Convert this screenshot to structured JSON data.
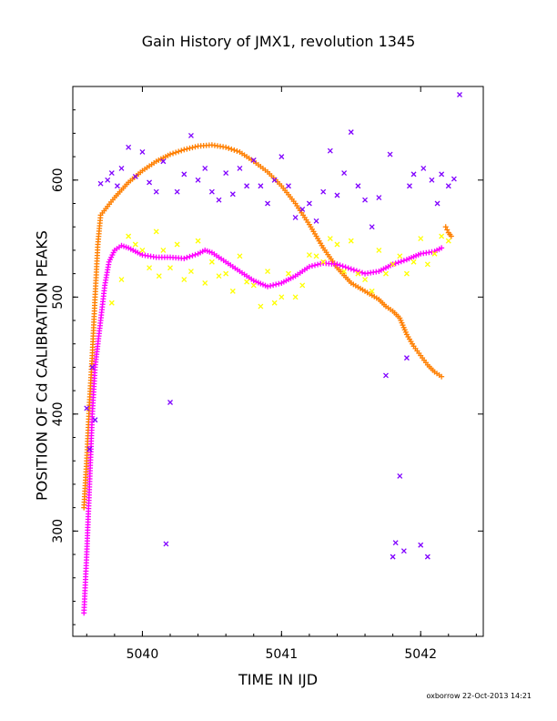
{
  "chart_data": {
    "type": "scatter",
    "title": "Gain History of JMX1, revolution 1345",
    "xlabel": "TIME IN IJD",
    "ylabel": "POSITION OF Cd CALIBRATION PEAKS",
    "footer": "oxborrow 22-Oct-2013 14:21",
    "xlim": [
      5039.5,
      5042.45
    ],
    "ylim": [
      210,
      680
    ],
    "xticks": [
      5040,
      5041,
      5042
    ],
    "yticks": [
      300,
      400,
      500,
      600
    ],
    "grid": false,
    "legend": "none",
    "series": [
      {
        "color": "#ff7f00",
        "marker": "plus-dense",
        "points": [
          [
            5039.58,
            320
          ],
          [
            5039.6,
            360
          ],
          [
            5039.62,
            410
          ],
          [
            5039.64,
            450
          ],
          [
            5039.66,
            500
          ],
          [
            5039.68,
            545
          ],
          [
            5039.7,
            570
          ],
          [
            5039.8,
            585
          ],
          [
            5039.9,
            598
          ],
          [
            5040.0,
            608
          ],
          [
            5040.1,
            616
          ],
          [
            5040.2,
            622
          ],
          [
            5040.3,
            626
          ],
          [
            5040.4,
            629
          ],
          [
            5040.5,
            630
          ],
          [
            5040.6,
            628
          ],
          [
            5040.7,
            624
          ],
          [
            5040.8,
            616
          ],
          [
            5040.9,
            607
          ],
          [
            5041.0,
            595
          ],
          [
            5041.1,
            580
          ],
          [
            5041.2,
            562
          ],
          [
            5041.3,
            542
          ],
          [
            5041.4,
            525
          ],
          [
            5041.5,
            512
          ],
          [
            5041.6,
            505
          ],
          [
            5041.7,
            498
          ],
          [
            5041.75,
            492
          ],
          [
            5041.8,
            488
          ],
          [
            5041.85,
            482
          ],
          [
            5041.9,
            468
          ],
          [
            5041.95,
            458
          ],
          [
            5042.0,
            450
          ],
          [
            5042.05,
            442
          ],
          [
            5042.1,
            436
          ],
          [
            5042.15,
            432
          ],
          [
            5042.18,
            560
          ],
          [
            5042.2,
            555
          ],
          [
            5042.22,
            552
          ]
        ]
      },
      {
        "color": "#ff00ff",
        "marker": "plus-dense",
        "points": [
          [
            5039.58,
            230
          ],
          [
            5039.6,
            280
          ],
          [
            5039.62,
            340
          ],
          [
            5039.64,
            400
          ],
          [
            5039.66,
            440
          ],
          [
            5039.68,
            460
          ],
          [
            5039.7,
            480
          ],
          [
            5039.73,
            510
          ],
          [
            5039.76,
            530
          ],
          [
            5039.8,
            540
          ],
          [
            5039.85,
            544
          ],
          [
            5039.9,
            542
          ],
          [
            5040.0,
            536
          ],
          [
            5040.1,
            534
          ],
          [
            5040.2,
            534
          ],
          [
            5040.3,
            533
          ],
          [
            5040.4,
            537
          ],
          [
            5040.45,
            540
          ],
          [
            5040.5,
            538
          ],
          [
            5040.6,
            530
          ],
          [
            5040.7,
            522
          ],
          [
            5040.8,
            514
          ],
          [
            5040.9,
            509
          ],
          [
            5041.0,
            512
          ],
          [
            5041.1,
            518
          ],
          [
            5041.2,
            526
          ],
          [
            5041.3,
            529
          ],
          [
            5041.4,
            528
          ],
          [
            5041.5,
            524
          ],
          [
            5041.6,
            520
          ],
          [
            5041.7,
            522
          ],
          [
            5041.8,
            528
          ],
          [
            5041.9,
            532
          ],
          [
            5042.0,
            537
          ],
          [
            5042.1,
            539
          ],
          [
            5042.15,
            542
          ]
        ]
      },
      {
        "color": "#ffff00",
        "marker": "x",
        "points": [
          [
            5039.78,
            495
          ],
          [
            5039.85,
            515
          ],
          [
            5039.9,
            552
          ],
          [
            5039.95,
            545
          ],
          [
            5040.0,
            540
          ],
          [
            5040.05,
            525
          ],
          [
            5040.1,
            556
          ],
          [
            5040.12,
            518
          ],
          [
            5040.15,
            540
          ],
          [
            5040.2,
            525
          ],
          [
            5040.25,
            545
          ],
          [
            5040.3,
            515
          ],
          [
            5040.35,
            522
          ],
          [
            5040.4,
            548
          ],
          [
            5040.45,
            512
          ],
          [
            5040.5,
            530
          ],
          [
            5040.55,
            518
          ],
          [
            5040.6,
            520
          ],
          [
            5040.65,
            505
          ],
          [
            5040.7,
            535
          ],
          [
            5040.75,
            513
          ],
          [
            5040.8,
            510
          ],
          [
            5040.85,
            492
          ],
          [
            5040.9,
            522
          ],
          [
            5040.95,
            495
          ],
          [
            5041.0,
            500
          ],
          [
            5041.05,
            520
          ],
          [
            5041.1,
            500
          ],
          [
            5041.15,
            510
          ],
          [
            5041.2,
            536
          ],
          [
            5041.25,
            535
          ],
          [
            5041.3,
            530
          ],
          [
            5041.35,
            550
          ],
          [
            5041.4,
            545
          ],
          [
            5041.45,
            522
          ],
          [
            5041.5,
            548
          ],
          [
            5041.55,
            520
          ],
          [
            5041.6,
            515
          ],
          [
            5041.65,
            505
          ],
          [
            5041.7,
            540
          ],
          [
            5041.75,
            520
          ],
          [
            5041.8,
            528
          ],
          [
            5041.85,
            535
          ],
          [
            5041.9,
            520
          ],
          [
            5041.95,
            530
          ],
          [
            5042.0,
            550
          ],
          [
            5042.05,
            528
          ],
          [
            5042.1,
            537
          ],
          [
            5042.15,
            552
          ],
          [
            5042.2,
            548
          ]
        ]
      },
      {
        "color": "#8000ff",
        "marker": "x",
        "points": [
          [
            5039.6,
            405
          ],
          [
            5039.62,
            370
          ],
          [
            5039.64,
            440
          ],
          [
            5039.66,
            395
          ],
          [
            5039.7,
            597
          ],
          [
            5039.75,
            600
          ],
          [
            5039.78,
            606
          ],
          [
            5039.82,
            595
          ],
          [
            5039.85,
            610
          ],
          [
            5039.9,
            628
          ],
          [
            5039.95,
            603
          ],
          [
            5040.0,
            624
          ],
          [
            5040.05,
            598
          ],
          [
            5040.1,
            590
          ],
          [
            5040.15,
            616
          ],
          [
            5040.2,
            410
          ],
          [
            5040.17,
            289
          ],
          [
            5040.25,
            590
          ],
          [
            5040.3,
            605
          ],
          [
            5040.35,
            638
          ],
          [
            5040.4,
            600
          ],
          [
            5040.45,
            610
          ],
          [
            5040.5,
            590
          ],
          [
            5040.55,
            583
          ],
          [
            5040.6,
            606
          ],
          [
            5040.65,
            588
          ],
          [
            5040.7,
            610
          ],
          [
            5040.75,
            595
          ],
          [
            5040.8,
            617
          ],
          [
            5040.85,
            595
          ],
          [
            5040.9,
            580
          ],
          [
            5040.95,
            600
          ],
          [
            5041.0,
            620
          ],
          [
            5041.05,
            595
          ],
          [
            5041.1,
            568
          ],
          [
            5041.15,
            575
          ],
          [
            5041.2,
            580
          ],
          [
            5041.25,
            565
          ],
          [
            5041.3,
            590
          ],
          [
            5041.35,
            625
          ],
          [
            5041.4,
            587
          ],
          [
            5041.45,
            606
          ],
          [
            5041.5,
            641
          ],
          [
            5041.55,
            595
          ],
          [
            5041.6,
            583
          ],
          [
            5041.65,
            560
          ],
          [
            5041.7,
            585
          ],
          [
            5041.75,
            433
          ],
          [
            5041.78,
            622
          ],
          [
            5041.8,
            278
          ],
          [
            5041.82,
            290
          ],
          [
            5041.85,
            347
          ],
          [
            5041.88,
            283
          ],
          [
            5041.9,
            448
          ],
          [
            5041.92,
            595
          ],
          [
            5041.95,
            605
          ],
          [
            5042.0,
            288
          ],
          [
            5042.02,
            610
          ],
          [
            5042.05,
            278
          ],
          [
            5042.08,
            600
          ],
          [
            5042.12,
            580
          ],
          [
            5042.15,
            605
          ],
          [
            5042.2,
            595
          ],
          [
            5042.24,
            601
          ],
          [
            5042.28,
            673
          ]
        ]
      }
    ]
  }
}
